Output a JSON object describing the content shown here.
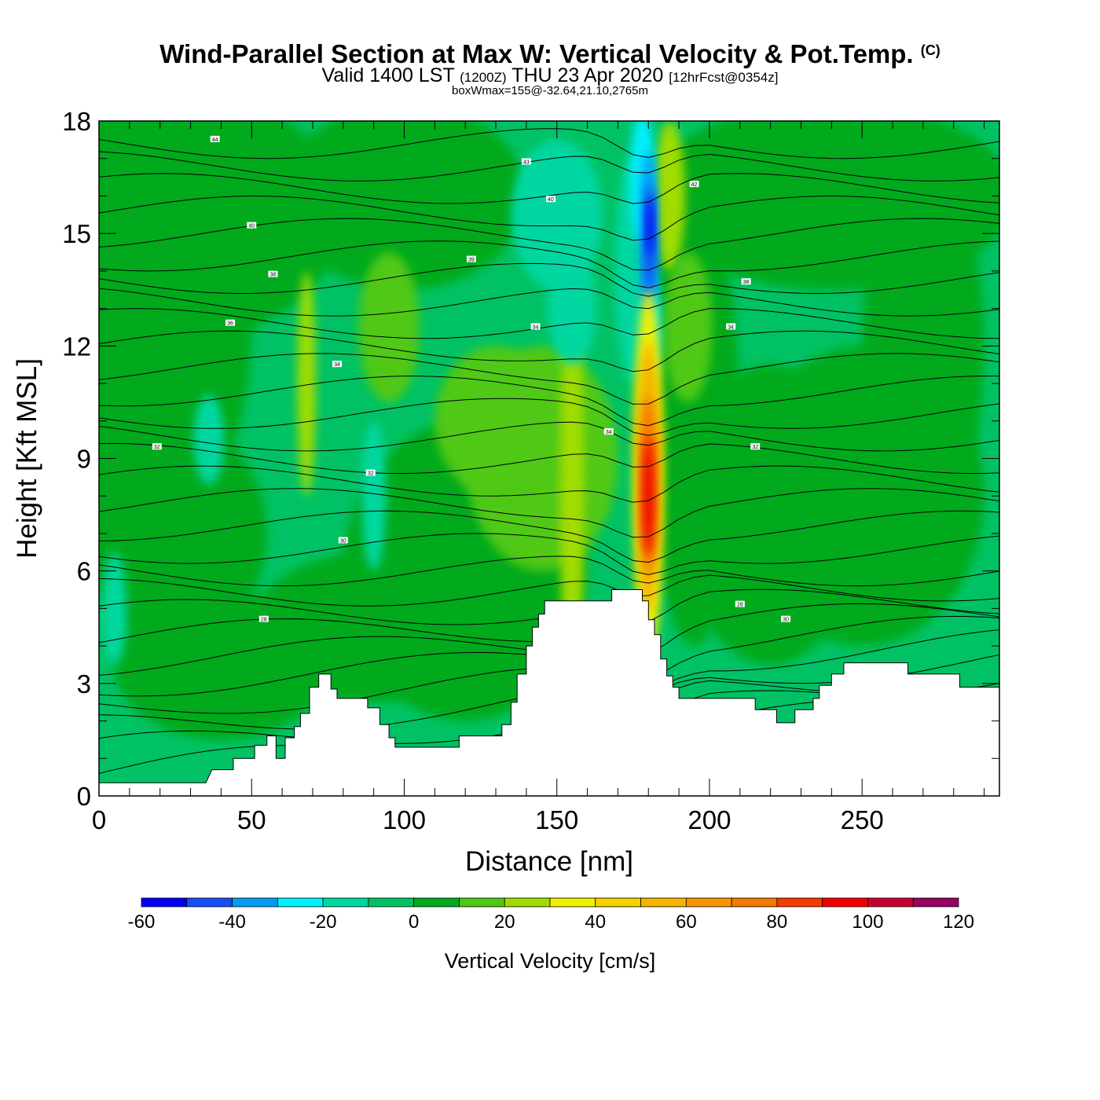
{
  "header": {
    "title": "Wind-Parallel Section at Max W: Vertical Velocity & Pot.Temp.",
    "copyright": "(C)",
    "valid_prefix": "Valid 1400 LST",
    "valid_utc": "(1200Z)",
    "valid_date": "THU 23 Apr 2020",
    "forecast": "[12hrFcst@0354z]",
    "box_wmax": "boxWmax=155@-32.64,21.10,2765m"
  },
  "chart_data": {
    "type": "heatmap",
    "xlabel": "Distance [nm]",
    "ylabel": "Height [Kft MSL]",
    "xlim": [
      0,
      295
    ],
    "ylim": [
      0,
      18
    ],
    "x_ticks": [
      0,
      50,
      100,
      150,
      200,
      250
    ],
    "x_tick_labels": [
      "0",
      "50",
      "100",
      "150",
      "200",
      "250"
    ],
    "y_ticks": [
      0,
      3,
      6,
      9,
      12,
      15,
      18
    ],
    "y_tick_labels": [
      "0",
      "3",
      "6",
      "9",
      "12",
      "15",
      "18"
    ],
    "colorbar": {
      "title": "Vertical Velocity [cm/s]",
      "bounds": [
        -60,
        -50,
        -40,
        -30,
        -20,
        -10,
        0,
        10,
        20,
        30,
        40,
        50,
        60,
        70,
        80,
        90,
        100,
        110,
        120
      ],
      "labels": [
        "-60",
        "-40",
        "-20",
        "0",
        "20",
        "40",
        "60",
        "80",
        "100",
        "120"
      ],
      "colors": [
        "#0000f0",
        "#1450f5",
        "#009cf5",
        "#00f0ff",
        "#00d7a0",
        "#00c264",
        "#00aa1e",
        "#50c814",
        "#a0dc00",
        "#f0f000",
        "#f5d200",
        "#f5b400",
        "#f59600",
        "#f57800",
        "#f53c00",
        "#f00000",
        "#c80032",
        "#960064"
      ]
    },
    "terrain_kft": [
      [
        0,
        0.35
      ],
      [
        35,
        0.35
      ],
      [
        37,
        0.7
      ],
      [
        44,
        0.7
      ],
      [
        44,
        1.0
      ],
      [
        51,
        1.0
      ],
      [
        51,
        1.35
      ],
      [
        55,
        1.35
      ],
      [
        55,
        1.6
      ],
      [
        58,
        1.6
      ],
      [
        58,
        1.0
      ],
      [
        61,
        1.0
      ],
      [
        61,
        1.55
      ],
      [
        64,
        1.55
      ],
      [
        64,
        1.85
      ],
      [
        66,
        1.85
      ],
      [
        66,
        2.2
      ],
      [
        69,
        2.2
      ],
      [
        69,
        2.9
      ],
      [
        72,
        2.9
      ],
      [
        72,
        3.25
      ],
      [
        76,
        3.25
      ],
      [
        76,
        2.85
      ],
      [
        78,
        2.85
      ],
      [
        78,
        2.6
      ],
      [
        88,
        2.6
      ],
      [
        88,
        2.35
      ],
      [
        92,
        2.35
      ],
      [
        92,
        1.9
      ],
      [
        95,
        1.9
      ],
      [
        95,
        1.55
      ],
      [
        97,
        1.55
      ],
      [
        97,
        1.3
      ],
      [
        118,
        1.3
      ],
      [
        118,
        1.6
      ],
      [
        132,
        1.6
      ],
      [
        132,
        1.9
      ],
      [
        135,
        1.9
      ],
      [
        135,
        2.5
      ],
      [
        137,
        2.5
      ],
      [
        137,
        3.25
      ],
      [
        140,
        3.25
      ],
      [
        140,
        4.0
      ],
      [
        142,
        4.0
      ],
      [
        142,
        4.5
      ],
      [
        144,
        4.5
      ],
      [
        144,
        4.85
      ],
      [
        146,
        4.85
      ],
      [
        146,
        5.2
      ],
      [
        168,
        5.2
      ],
      [
        168,
        5.5
      ],
      [
        178,
        5.5
      ],
      [
        178,
        5.2
      ],
      [
        180,
        5.2
      ],
      [
        180,
        4.7
      ],
      [
        182,
        4.7
      ],
      [
        182,
        4.3
      ],
      [
        184,
        4.3
      ],
      [
        184,
        3.65
      ],
      [
        186,
        3.65
      ],
      [
        186,
        3.2
      ],
      [
        188,
        3.2
      ],
      [
        188,
        2.9
      ],
      [
        190,
        2.9
      ],
      [
        190,
        2.6
      ],
      [
        215,
        2.6
      ],
      [
        215,
        2.3
      ],
      [
        222,
        2.3
      ],
      [
        222,
        1.95
      ],
      [
        228,
        1.95
      ],
      [
        228,
        2.3
      ],
      [
        234,
        2.3
      ],
      [
        234,
        2.6
      ],
      [
        236,
        2.6
      ],
      [
        236,
        2.95
      ],
      [
        240,
        2.95
      ],
      [
        240,
        3.25
      ],
      [
        244,
        3.25
      ],
      [
        244,
        3.55
      ],
      [
        265,
        3.55
      ],
      [
        265,
        3.25
      ],
      [
        282,
        3.25
      ],
      [
        282,
        2.9
      ],
      [
        295,
        2.9
      ]
    ],
    "contour_labels": [
      "44",
      "43",
      "42",
      "40",
      "40",
      "39",
      "38",
      "38",
      "36",
      "34",
      "34",
      "34",
      "34",
      "32",
      "32",
      "32",
      "30",
      "30",
      "28",
      "28"
    ]
  }
}
